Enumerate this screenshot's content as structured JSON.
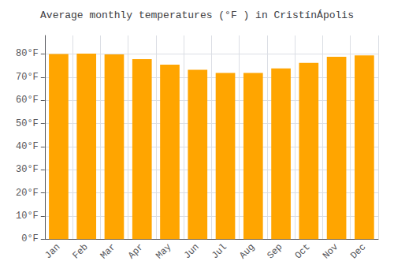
{
  "chart_data": {
    "type": "bar",
    "title": "Average monthly temperatures (°F ) in CristínÁpolis",
    "categories": [
      "Jan",
      "Feb",
      "Mar",
      "Apr",
      "May",
      "Jun",
      "Jul",
      "Aug",
      "Sep",
      "Oct",
      "Nov",
      "Dec"
    ],
    "values": [
      80.0,
      80.2,
      79.8,
      77.8,
      75.4,
      73.2,
      71.8,
      71.8,
      73.8,
      76.2,
      78.8,
      79.4
    ],
    "color": "#FFA500",
    "ylim": [
      0,
      88
    ],
    "yticks": [
      {
        "value": 0,
        "label": "0°F"
      },
      {
        "value": 10,
        "label": "10°F"
      },
      {
        "value": 20,
        "label": "20°F"
      },
      {
        "value": 30,
        "label": "30°F"
      },
      {
        "value": 40,
        "label": "40°F"
      },
      {
        "value": 50,
        "label": "50°F"
      },
      {
        "value": 60,
        "label": "60°F"
      },
      {
        "value": 70,
        "label": "70°F"
      },
      {
        "value": 80,
        "label": "80°F"
      }
    ],
    "grid": true
  }
}
